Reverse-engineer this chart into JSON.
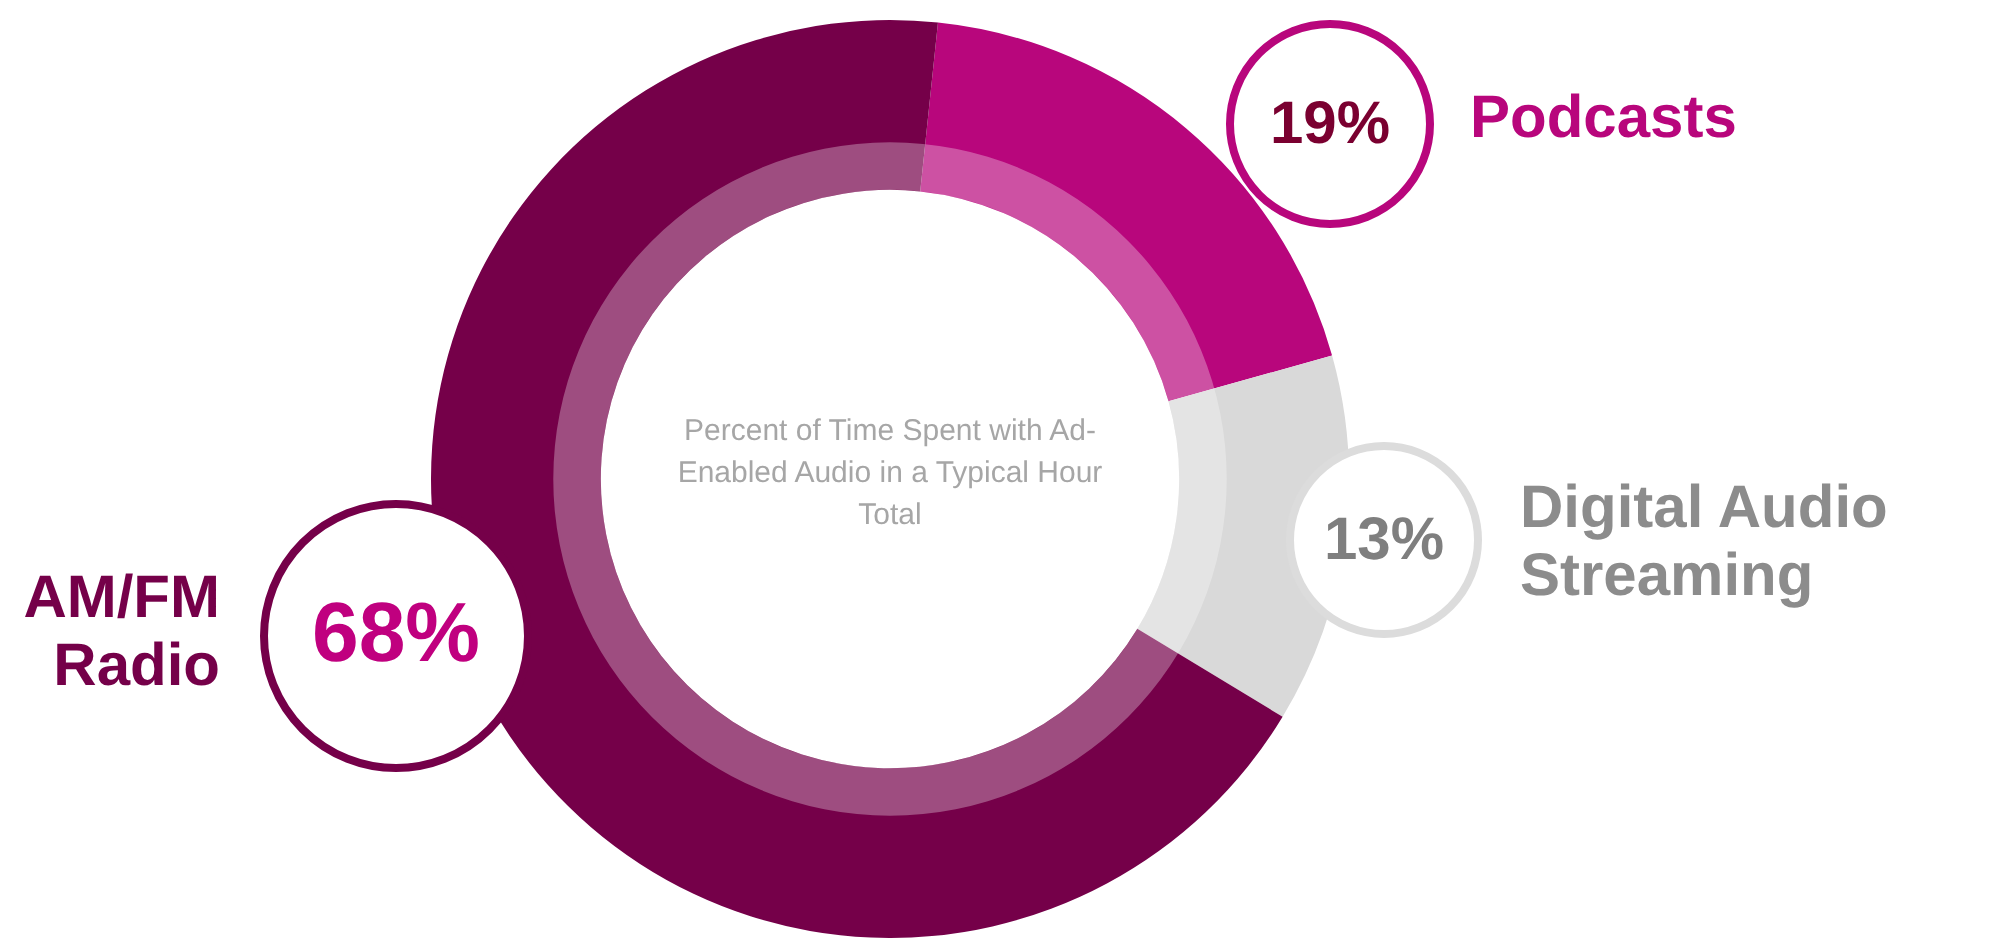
{
  "chart_data": {
    "type": "donut",
    "title": "Percent of Time Spent with Ad-Enabled Audio in a Typical Hour Total",
    "categories": [
      "Podcasts",
      "Digital Audio Streaming",
      "AM/FM Radio"
    ],
    "values": [
      19,
      13,
      68
    ],
    "colors": [
      "#b8067c",
      "#d9d9d9",
      "#750049"
    ],
    "value_labels": [
      "19%",
      "13%",
      "68%"
    ],
    "legend": false
  }
}
